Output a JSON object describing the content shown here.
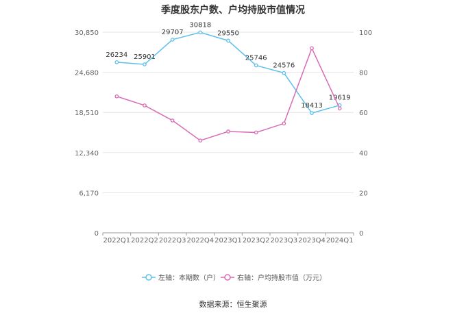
{
  "title": "季度股东户数、户均持股市值情况",
  "source": "数据来源：恒生聚源",
  "chart_data": {
    "type": "line",
    "categories": [
      "2022Q1",
      "2022Q2",
      "2022Q3",
      "2022Q4",
      "2023Q1",
      "2023Q2",
      "2023Q3",
      "2023Q4",
      "2024Q1"
    ],
    "left_axis": {
      "ticks": [
        "0",
        "6,170",
        "12,340",
        "18,510",
        "24,680",
        "30,850"
      ],
      "ylim": [
        0,
        30850
      ]
    },
    "right_axis": {
      "ticks": [
        "0",
        "20",
        "40",
        "60",
        "80",
        "100"
      ],
      "ylim": [
        0,
        100
      ]
    },
    "grid": true,
    "legend_position": "bottom",
    "series": [
      {
        "name": "左轴：本期数（户）",
        "axis": "left",
        "color": "#5bc0eb",
        "values": [
          26234,
          25901,
          29707,
          30818,
          29550,
          25746,
          24576,
          18413,
          19619
        ],
        "labels": [
          "26234",
          "25901",
          "29707",
          "30818",
          "29550",
          "25746",
          "24576",
          "18413",
          "19619"
        ]
      },
      {
        "name": "右轴：户均持股市值（万元）",
        "axis": "right",
        "color": "#d86bb5",
        "values": [
          68,
          63.5,
          56,
          46,
          50.5,
          50,
          54.5,
          92,
          62
        ]
      }
    ]
  }
}
